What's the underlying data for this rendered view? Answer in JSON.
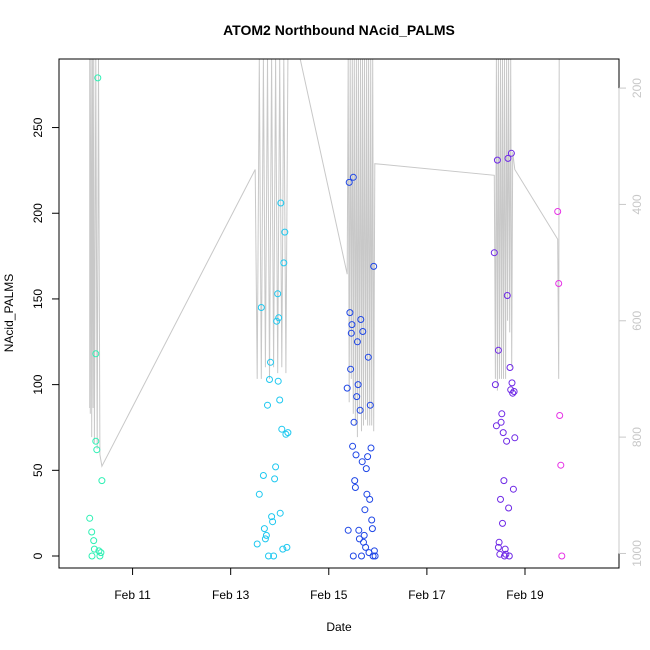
{
  "chart_data": {
    "type": "scatter",
    "title": "ATOM2 Northbound NAcid_PALMS",
    "xlabel": "Date",
    "ylabel": "NAcid_PALMS",
    "x_unit": "date",
    "xlim": [
      "2017-02-09T12:00",
      "2017-02-20T22:00"
    ],
    "ylim": [
      -7,
      290
    ],
    "x_ticks": [
      {
        "value": "2017-02-11T00:00",
        "label": "Feb 11"
      },
      {
        "value": "2017-02-13T00:00",
        "label": "Feb 13"
      },
      {
        "value": "2017-02-15T00:00",
        "label": "Feb 15"
      },
      {
        "value": "2017-02-17T00:00",
        "label": "Feb 17"
      },
      {
        "value": "2017-02-19T00:00",
        "label": "Feb 19"
      }
    ],
    "y_ticks": [
      0,
      50,
      100,
      150,
      200,
      250
    ],
    "right_axis": {
      "ticks": [
        200,
        400,
        600,
        800,
        1000
      ],
      "ylim": [
        1025,
        150
      ],
      "color": "#c8c8c8"
    },
    "grid": false,
    "legend": "none",
    "series": [
      {
        "color": "#2ef0b4",
        "points": [
          [
            "2017-02-10T03:00",
            22
          ],
          [
            "2017-02-10T04:00",
            14
          ],
          [
            "2017-02-10T04:10",
            0
          ],
          [
            "2017-02-10T05:00",
            9
          ],
          [
            "2017-02-10T05:20",
            4
          ],
          [
            "2017-02-10T06:00",
            67
          ],
          [
            "2017-02-10T06:30",
            62
          ],
          [
            "2017-02-10T06:00",
            118
          ],
          [
            "2017-02-10T07:00",
            279
          ],
          [
            "2017-02-10T07:30",
            3
          ],
          [
            "2017-02-10T08:00",
            0
          ],
          [
            "2017-02-10T09:00",
            44
          ],
          [
            "2017-02-10T08:30",
            2
          ]
        ]
      },
      {
        "color": "#1ec8f0",
        "points": [
          [
            "2017-02-13T13:00",
            7
          ],
          [
            "2017-02-13T14:00",
            36
          ],
          [
            "2017-02-13T15:00",
            145
          ],
          [
            "2017-02-13T16:00",
            47
          ],
          [
            "2017-02-13T16:30",
            16
          ],
          [
            "2017-02-13T17:00",
            10
          ],
          [
            "2017-02-13T17:30",
            12
          ],
          [
            "2017-02-13T18:00",
            88
          ],
          [
            "2017-02-13T18:30",
            0
          ],
          [
            "2017-02-13T19:00",
            103
          ],
          [
            "2017-02-13T19:30",
            113
          ],
          [
            "2017-02-13T20:00",
            23
          ],
          [
            "2017-02-13T20:30",
            20
          ],
          [
            "2017-02-13T21:00",
            0
          ],
          [
            "2017-02-13T21:30",
            45
          ],
          [
            "2017-02-13T22:00",
            52
          ],
          [
            "2017-02-13T22:30",
            137
          ],
          [
            "2017-02-13T23:00",
            153
          ],
          [
            "2017-02-13T23:15",
            102
          ],
          [
            "2017-02-13T23:30",
            139
          ],
          [
            "2017-02-14T00:00",
            91
          ],
          [
            "2017-02-14T00:15",
            25
          ],
          [
            "2017-02-14T00:30",
            206
          ],
          [
            "2017-02-14T01:00",
            74
          ],
          [
            "2017-02-14T01:30",
            4
          ],
          [
            "2017-02-14T02:00",
            171
          ],
          [
            "2017-02-14T02:30",
            189
          ],
          [
            "2017-02-14T03:00",
            71
          ],
          [
            "2017-02-14T03:30",
            5
          ],
          [
            "2017-02-14T04:00",
            72
          ]
        ]
      },
      {
        "color": "#1e46e6",
        "points": [
          [
            "2017-02-15T09:00",
            98
          ],
          [
            "2017-02-15T09:30",
            15
          ],
          [
            "2017-02-15T10:00",
            218
          ],
          [
            "2017-02-15T10:20",
            142
          ],
          [
            "2017-02-15T10:40",
            109
          ],
          [
            "2017-02-15T11:00",
            130
          ],
          [
            "2017-02-15T11:20",
            135
          ],
          [
            "2017-02-15T11:40",
            64
          ],
          [
            "2017-02-15T12:00",
            221
          ],
          [
            "2017-02-15T12:00",
            0
          ],
          [
            "2017-02-15T12:20",
            78
          ],
          [
            "2017-02-15T12:40",
            44
          ],
          [
            "2017-02-15T13:00",
            40
          ],
          [
            "2017-02-15T13:20",
            59
          ],
          [
            "2017-02-15T13:40",
            93
          ],
          [
            "2017-02-15T14:00",
            125
          ],
          [
            "2017-02-15T14:20",
            100
          ],
          [
            "2017-02-15T14:40",
            15
          ],
          [
            "2017-02-15T15:00",
            10
          ],
          [
            "2017-02-15T15:20",
            85
          ],
          [
            "2017-02-15T15:40",
            138
          ],
          [
            "2017-02-15T16:00",
            0
          ],
          [
            "2017-02-15T16:20",
            55
          ],
          [
            "2017-02-15T16:40",
            131
          ],
          [
            "2017-02-15T17:00",
            8
          ],
          [
            "2017-02-15T17:20",
            12
          ],
          [
            "2017-02-15T17:40",
            27
          ],
          [
            "2017-02-15T18:00",
            5
          ],
          [
            "2017-02-15T18:20",
            51
          ],
          [
            "2017-02-15T18:40",
            36
          ],
          [
            "2017-02-15T19:00",
            58
          ],
          [
            "2017-02-15T19:20",
            116
          ],
          [
            "2017-02-15T19:40",
            2
          ],
          [
            "2017-02-15T20:00",
            33
          ],
          [
            "2017-02-15T20:20",
            88
          ],
          [
            "2017-02-15T20:40",
            63
          ],
          [
            "2017-02-15T21:00",
            21
          ],
          [
            "2017-02-15T21:20",
            16
          ],
          [
            "2017-02-15T21:40",
            0
          ],
          [
            "2017-02-15T22:00",
            169
          ],
          [
            "2017-02-15T22:20",
            3
          ],
          [
            "2017-02-15T22:40",
            0
          ]
        ]
      },
      {
        "color": "#6e28e6",
        "points": [
          [
            "2017-02-18T09:00",
            177
          ],
          [
            "2017-02-18T09:30",
            100
          ],
          [
            "2017-02-18T10:00",
            76
          ],
          [
            "2017-02-18T10:30",
            231
          ],
          [
            "2017-02-18T11:00",
            120
          ],
          [
            "2017-02-18T11:00",
            5
          ],
          [
            "2017-02-18T11:20",
            8
          ],
          [
            "2017-02-18T11:40",
            1
          ],
          [
            "2017-02-18T12:00",
            33
          ],
          [
            "2017-02-18T12:20",
            78
          ],
          [
            "2017-02-18T12:40",
            83
          ],
          [
            "2017-02-18T13:00",
            19
          ],
          [
            "2017-02-18T13:20",
            72
          ],
          [
            "2017-02-18T13:40",
            44
          ],
          [
            "2017-02-18T14:00",
            0
          ],
          [
            "2017-02-18T14:20",
            4
          ],
          [
            "2017-02-18T14:40",
            1
          ],
          [
            "2017-02-18T15:00",
            67
          ],
          [
            "2017-02-18T15:20",
            152
          ],
          [
            "2017-02-18T15:40",
            232
          ],
          [
            "2017-02-18T16:00",
            28
          ],
          [
            "2017-02-18T16:20",
            0
          ],
          [
            "2017-02-18T16:40",
            110
          ],
          [
            "2017-02-18T17:00",
            97
          ],
          [
            "2017-02-18T17:20",
            235
          ],
          [
            "2017-02-18T17:40",
            101
          ],
          [
            "2017-02-18T18:00",
            95
          ],
          [
            "2017-02-18T18:20",
            39
          ],
          [
            "2017-02-18T18:40",
            96
          ],
          [
            "2017-02-18T19:00",
            69
          ]
        ]
      },
      {
        "color": "#e632e6",
        "points": [
          [
            "2017-02-19T16:00",
            201
          ],
          [
            "2017-02-19T16:30",
            159
          ],
          [
            "2017-02-19T17:00",
            82
          ],
          [
            "2017-02-19T17:30",
            53
          ],
          [
            "2017-02-19T18:00",
            0
          ]
        ]
      }
    ],
    "altitude_line": {
      "color": "#c8c8c8",
      "points": [
        [
          "2017-02-10T03:00",
          750
        ],
        [
          "2017-02-10T03:00",
          150
        ],
        [
          "2017-02-10T03:20",
          760
        ],
        [
          "2017-02-10T03:40",
          150
        ],
        [
          "2017-02-10T04:00",
          800
        ],
        [
          "2017-02-10T04:20",
          150
        ],
        [
          "2017-02-10T04:40",
          750
        ],
        [
          "2017-02-10T05:00",
          150
        ],
        [
          "2017-02-10T05:20",
          810
        ],
        [
          "2017-02-10T06:00",
          150
        ],
        [
          "2017-02-10T06:40",
          820
        ],
        [
          "2017-02-10T07:20",
          150
        ],
        [
          "2017-02-10T08:00",
          830
        ],
        [
          "2017-02-10T09:00",
          850
        ],
        [
          "2017-02-13T12:00",
          340
        ],
        [
          "2017-02-13T13:00",
          700
        ],
        [
          "2017-02-13T14:00",
          150
        ],
        [
          "2017-02-13T15:00",
          700
        ],
        [
          "2017-02-13T16:00",
          150
        ],
        [
          "2017-02-13T17:00",
          680
        ],
        [
          "2017-02-13T18:00",
          150
        ],
        [
          "2017-02-13T19:00",
          700
        ],
        [
          "2017-02-13T20:00",
          150
        ],
        [
          "2017-02-13T21:00",
          680
        ],
        [
          "2017-02-13T22:00",
          150
        ],
        [
          "2017-02-13T23:00",
          690
        ],
        [
          "2017-02-14T00:00",
          150
        ],
        [
          "2017-02-14T01:00",
          680
        ],
        [
          "2017-02-14T02:00",
          150
        ],
        [
          "2017-02-14T03:00",
          690
        ],
        [
          "2017-02-14T04:00",
          150
        ],
        [
          "2017-02-14T10:00",
          150
        ],
        [
          "2017-02-15T09:00",
          520
        ],
        [
          "2017-02-15T09:30",
          150
        ],
        [
          "2017-02-15T10:00",
          740
        ],
        [
          "2017-02-15T10:30",
          150
        ],
        [
          "2017-02-15T11:00",
          700
        ],
        [
          "2017-02-15T11:30",
          150
        ],
        [
          "2017-02-15T12:00",
          760
        ],
        [
          "2017-02-15T12:30",
          150
        ],
        [
          "2017-02-15T13:00",
          780
        ],
        [
          "2017-02-15T13:30",
          150
        ],
        [
          "2017-02-15T14:00",
          800
        ],
        [
          "2017-02-15T14:30",
          150
        ],
        [
          "2017-02-15T15:00",
          760
        ],
        [
          "2017-02-15T15:30",
          150
        ],
        [
          "2017-02-15T16:00",
          790
        ],
        [
          "2017-02-15T16:30",
          150
        ],
        [
          "2017-02-15T17:00",
          780
        ],
        [
          "2017-02-15T17:30",
          150
        ],
        [
          "2017-02-15T18:00",
          770
        ],
        [
          "2017-02-15T18:30",
          150
        ],
        [
          "2017-02-15T19:00",
          780
        ],
        [
          "2017-02-15T19:30",
          150
        ],
        [
          "2017-02-15T20:00",
          780
        ],
        [
          "2017-02-15T20:30",
          150
        ],
        [
          "2017-02-15T21:00",
          780
        ],
        [
          "2017-02-15T21:30",
          150
        ],
        [
          "2017-02-15T22:00",
          790
        ],
        [
          "2017-02-15T22:30",
          330
        ],
        [
          "2017-02-18T09:00",
          350
        ],
        [
          "2017-02-18T09:30",
          700
        ],
        [
          "2017-02-18T10:00",
          150
        ],
        [
          "2017-02-18T10:30",
          720
        ],
        [
          "2017-02-18T11:00",
          150
        ],
        [
          "2017-02-18T11:30",
          700
        ],
        [
          "2017-02-18T12:00",
          150
        ],
        [
          "2017-02-18T12:30",
          700
        ],
        [
          "2017-02-18T13:00",
          150
        ],
        [
          "2017-02-18T13:30",
          700
        ],
        [
          "2017-02-18T14:00",
          150
        ],
        [
          "2017-02-18T14:30",
          700
        ],
        [
          "2017-02-18T15:00",
          150
        ],
        [
          "2017-02-18T15:30",
          600
        ],
        [
          "2017-02-18T16:00",
          150
        ],
        [
          "2017-02-18T16:30",
          620
        ],
        [
          "2017-02-18T17:00",
          150
        ],
        [
          "2017-02-18T17:30",
          680
        ],
        [
          "2017-02-18T18:00",
          310
        ],
        [
          "2017-02-18T19:00",
          340
        ],
        [
          "2017-02-19T16:00",
          460
        ],
        [
          "2017-02-19T16:30",
          700
        ],
        [
          "2017-02-19T16:45",
          150
        ]
      ]
    }
  }
}
